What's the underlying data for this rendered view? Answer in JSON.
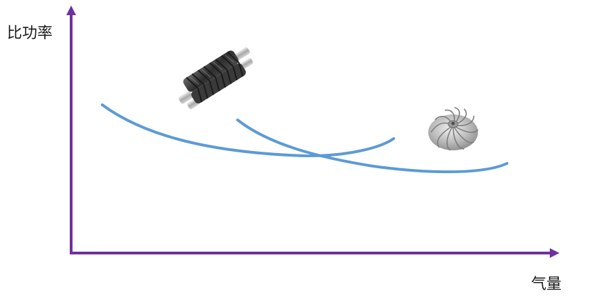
{
  "axes": {
    "y_label": "比功率",
    "x_label": "气量"
  },
  "colors": {
    "axis": "#7030a0",
    "curve": "#5b9bd5"
  },
  "icons": {
    "screw": "screw-rotor-icon",
    "impeller": "centrifugal-impeller-icon"
  },
  "curves": [
    {
      "name": "",
      "description_key": "screw-curve"
    },
    {
      "name": "",
      "description_key": "centrifugal-curve"
    }
  ]
}
